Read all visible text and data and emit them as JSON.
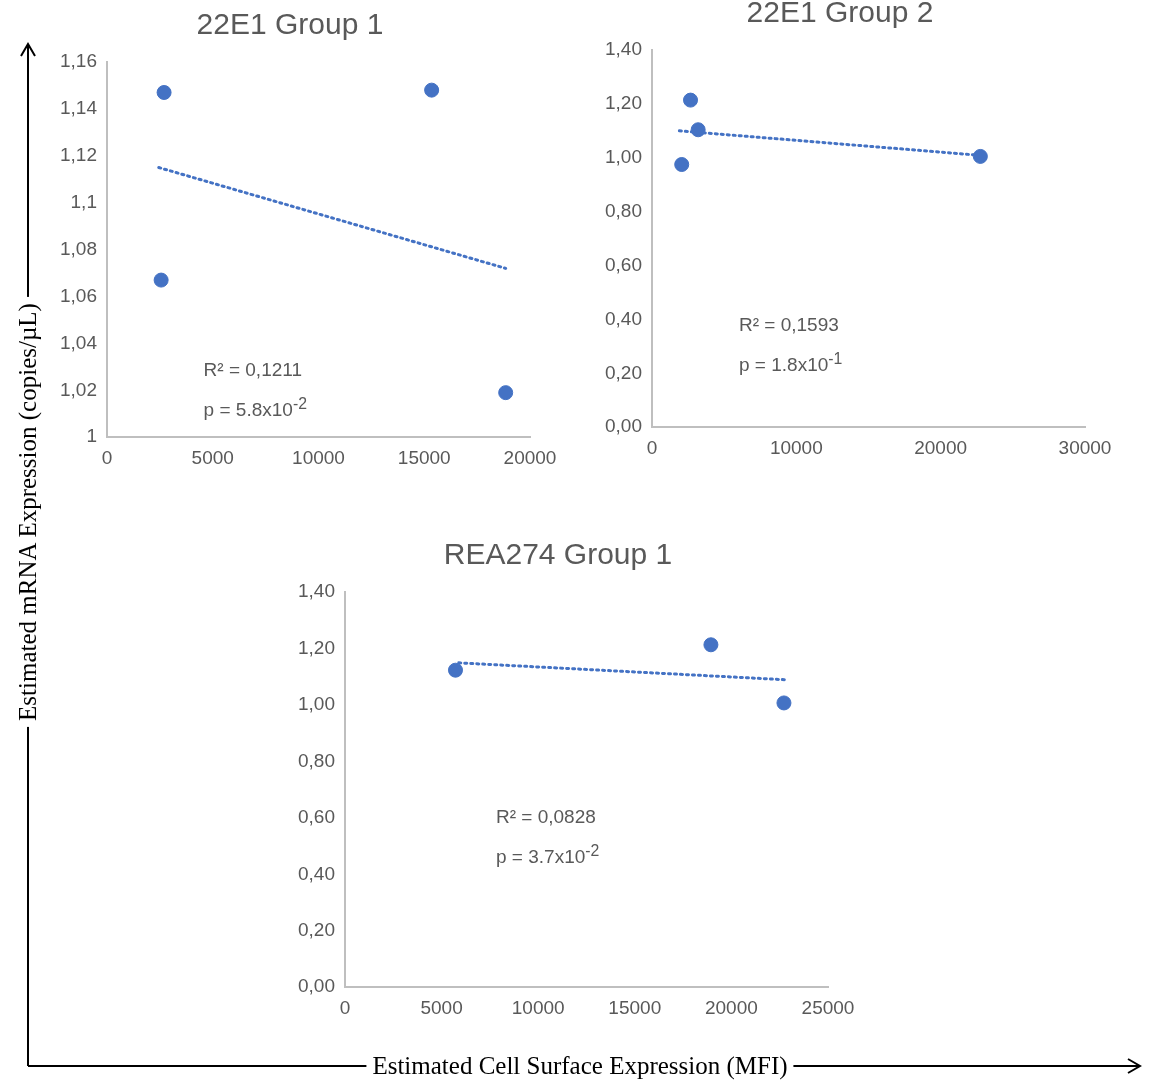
{
  "chart_data": [
    {
      "type": "scatter",
      "title": "22E1 Group 1",
      "ylabel": "Estimated mRNA Expression (copies/µL)",
      "xlabel": "Estimated Cell Surface Expression (MFI)",
      "xlim": [
        0,
        20000
      ],
      "xticks": [
        0,
        5000,
        10000,
        15000,
        20000
      ],
      "ylim": [
        1,
        1.16
      ],
      "yticks": [
        {
          "value": 1,
          "label": "1"
        },
        {
          "value": 1.02,
          "label": "1,02"
        },
        {
          "value": 1.04,
          "label": "1,04"
        },
        {
          "value": 1.06,
          "label": "1,06"
        },
        {
          "value": 1.08,
          "label": "1,08"
        },
        {
          "value": 1.1,
          "label": "1,1"
        },
        {
          "value": 1.12,
          "label": "1,12"
        },
        {
          "value": 1.14,
          "label": "1,14"
        },
        {
          "value": 1.16,
          "label": "1,16"
        }
      ],
      "series": [
        {
          "type": "scatter",
          "color": "#4472c4",
          "marker": "circle",
          "x": [
            2700,
            2560,
            15350,
            18850
          ],
          "values": [
            1.147,
            1.067,
            1.148,
            1.019
          ]
        },
        {
          "type": "line",
          "color": "#4472c4",
          "marker": "none",
          "line_style": "dotted",
          "x": [
            2450,
            18850
          ],
          "values": [
            1.115,
            1.072
          ]
        }
      ],
      "annotations": [
        "R² = 0,1211",
        "p = 5.8x10$^{-2}$"
      ]
    },
    {
      "type": "scatter",
      "title": "22E1 Group 2",
      "xlim": [
        0,
        30000
      ],
      "xticks": [
        0,
        10000,
        20000,
        30000
      ],
      "ylim": [
        0,
        1.4
      ],
      "yticks": [
        {
          "value": 0,
          "label": "0,00"
        },
        {
          "value": 0.2,
          "label": "0,20"
        },
        {
          "value": 0.4,
          "label": "0,40"
        },
        {
          "value": 0.6,
          "label": "0,60"
        },
        {
          "value": 0.8,
          "label": "0,80"
        },
        {
          "value": 1,
          "label": "1,00"
        },
        {
          "value": 1.2,
          "label": "1,20"
        },
        {
          "value": 1.4,
          "label": "1,40"
        }
      ],
      "series": [
        {
          "type": "scatter",
          "color": "#4472c4",
          "marker": "circle",
          "x": [
            2670,
            3200,
            2060,
            22750
          ],
          "values": [
            1.214,
            1.104,
            0.975,
            1.005
          ]
        },
        {
          "type": "line",
          "color": "#4472c4",
          "marker": "none",
          "line_style": "dotted",
          "x": [
            1900,
            22750
          ],
          "values": [
            1.1,
            1.009
          ]
        }
      ],
      "annotations": [
        "R² = 0,1593",
        "p = 1.8x10$^{-1}$"
      ]
    },
    {
      "type": "scatter",
      "title": "REA274 Group 1",
      "xlim": [
        0,
        25000
      ],
      "xticks": [
        0,
        5000,
        10000,
        15000,
        20000,
        25000
      ],
      "ylim": [
        0,
        1.4
      ],
      "yticks": [
        {
          "value": 0,
          "label": "0,00"
        },
        {
          "value": 0.2,
          "label": "0,20"
        },
        {
          "value": 0.4,
          "label": "0,40"
        },
        {
          "value": 0.6,
          "label": "0,60"
        },
        {
          "value": 0.8,
          "label": "0,80"
        },
        {
          "value": 1,
          "label": "1,00"
        },
        {
          "value": 1.2,
          "label": "1,20"
        },
        {
          "value": 1.4,
          "label": "1,40"
        }
      ],
      "series": [
        {
          "type": "scatter",
          "color": "#4472c4",
          "marker": "circle",
          "x": [
            5720,
            18940,
            22720
          ],
          "values": [
            1.123,
            1.213,
            1.007
          ]
        },
        {
          "type": "line",
          "color": "#4472c4",
          "marker": "none",
          "line_style": "dotted",
          "x": [
            5890,
            22830
          ],
          "values": [
            1.149,
            1.089
          ]
        }
      ],
      "annotations": [
        "R² = 0,0828",
        "p = 3.7x10$^{-2}$"
      ]
    }
  ]
}
